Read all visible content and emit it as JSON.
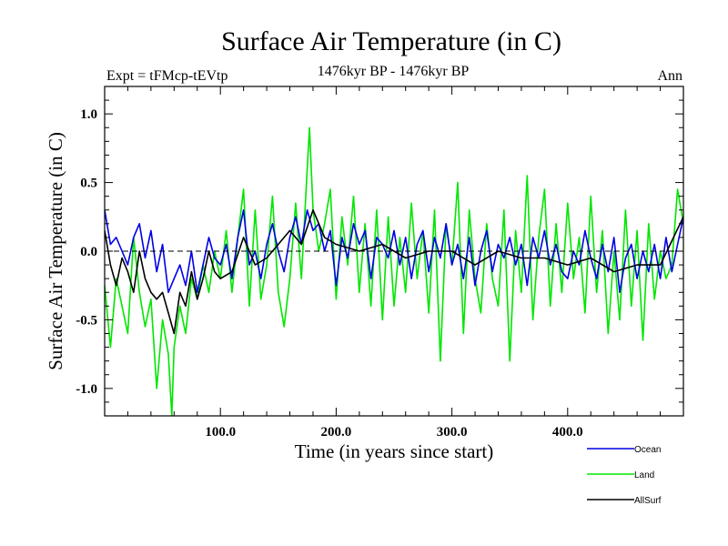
{
  "chart_data": {
    "type": "line",
    "title": "Surface Air Temperature (in C)",
    "subtitle_left": "Expt = tFMcp-tEVtp",
    "subtitle_center": "1476kyr BP - 1476kyr BP",
    "subtitle_right": "Ann",
    "xlabel": "Time (in years since start)",
    "ylabel": "Surface Air Temperature (in C)",
    "xlim": [
      0,
      500
    ],
    "ylim": [
      -1.2,
      1.2
    ],
    "xticks": [
      100,
      200,
      300,
      400
    ],
    "xtick_labels": [
      "100.0",
      "200.0",
      "300.0",
      "400.0"
    ],
    "yticks": [
      -1.0,
      -0.5,
      0.0,
      0.5,
      1.0
    ],
    "ytick_labels": [
      "-1.0",
      "-0.5",
      "0.0",
      "0.5",
      "1.0"
    ],
    "zero_line": "dashed",
    "legend_position": "bottom-right, below plot",
    "series": [
      {
        "name": "Land",
        "color": "#00e600",
        "x": [
          0,
          5,
          10,
          15,
          20,
          25,
          30,
          35,
          40,
          45,
          50,
          55,
          58,
          60,
          65,
          70,
          75,
          80,
          85,
          90,
          95,
          100,
          105,
          110,
          115,
          120,
          125,
          130,
          135,
          140,
          145,
          150,
          155,
          160,
          165,
          170,
          175,
          177,
          180,
          185,
          190,
          195,
          200,
          205,
          210,
          215,
          220,
          225,
          230,
          235,
          240,
          245,
          250,
          255,
          260,
          265,
          270,
          275,
          280,
          285,
          290,
          295,
          300,
          305,
          310,
          315,
          320,
          325,
          330,
          335,
          340,
          345,
          350,
          355,
          360,
          365,
          370,
          375,
          380,
          385,
          390,
          395,
          400,
          405,
          410,
          415,
          420,
          425,
          430,
          435,
          440,
          445,
          450,
          455,
          460,
          465,
          470,
          475,
          480,
          485,
          490,
          495,
          500
        ],
        "values": [
          -0.25,
          -0.7,
          -0.2,
          -0.4,
          -0.6,
          0.1,
          -0.3,
          -0.55,
          -0.35,
          -1.0,
          -0.5,
          -0.75,
          -1.2,
          -0.7,
          -0.4,
          -0.6,
          -0.2,
          -0.35,
          -0.1,
          -0.3,
          0.0,
          -0.2,
          0.15,
          -0.3,
          0.1,
          0.45,
          -0.4,
          0.3,
          -0.35,
          -0.1,
          0.4,
          -0.3,
          -0.55,
          -0.2,
          0.35,
          -0.2,
          0.6,
          0.9,
          0.3,
          0.0,
          0.2,
          0.45,
          -0.35,
          0.25,
          -0.1,
          0.4,
          -0.3,
          0.2,
          -0.4,
          0.3,
          -0.5,
          0.25,
          -0.4,
          0.1,
          -0.3,
          0.35,
          -0.2,
          0.15,
          -0.45,
          0.3,
          -0.8,
          0.2,
          -0.1,
          0.5,
          -0.6,
          0.3,
          -0.2,
          -0.45,
          0.2,
          -0.2,
          -0.4,
          0.3,
          -0.8,
          0.15,
          -0.3,
          0.55,
          -0.5,
          0.1,
          0.45,
          -0.4,
          0.2,
          -0.3,
          0.35,
          -0.2,
          0.1,
          -0.45,
          0.4,
          -0.3,
          0.15,
          -0.6,
          0.0,
          -0.5,
          0.3,
          -0.4,
          0.15,
          -0.65,
          0.2,
          -0.35,
          0.0,
          -0.2,
          -0.1,
          0.45,
          0.2
        ]
      },
      {
        "name": "Ocean",
        "color": "#0000e6",
        "x": [
          0,
          5,
          10,
          15,
          20,
          25,
          30,
          35,
          40,
          45,
          50,
          55,
          60,
          65,
          70,
          75,
          80,
          85,
          90,
          95,
          100,
          105,
          110,
          115,
          120,
          125,
          130,
          135,
          140,
          145,
          150,
          155,
          160,
          165,
          170,
          175,
          180,
          185,
          190,
          195,
          200,
          205,
          210,
          215,
          220,
          225,
          230,
          235,
          240,
          245,
          250,
          255,
          260,
          265,
          270,
          275,
          280,
          285,
          290,
          295,
          300,
          305,
          310,
          315,
          320,
          325,
          330,
          335,
          340,
          345,
          350,
          355,
          360,
          365,
          370,
          375,
          380,
          385,
          390,
          395,
          400,
          405,
          410,
          415,
          420,
          425,
          430,
          435,
          440,
          445,
          450,
          455,
          460,
          465,
          470,
          475,
          480,
          485,
          490,
          495,
          500
        ],
        "values": [
          0.3,
          0.05,
          0.1,
          0.0,
          -0.1,
          0.1,
          0.2,
          -0.05,
          0.15,
          -0.15,
          0.05,
          -0.3,
          -0.2,
          -0.1,
          -0.25,
          0.0,
          -0.3,
          -0.1,
          0.1,
          -0.05,
          -0.1,
          0.05,
          -0.2,
          0.1,
          0.3,
          -0.1,
          0.0,
          -0.2,
          0.05,
          0.2,
          0.0,
          -0.15,
          0.1,
          0.25,
          0.05,
          0.3,
          0.15,
          0.2,
          0.0,
          0.15,
          -0.25,
          0.1,
          -0.05,
          0.2,
          0.05,
          0.15,
          -0.2,
          0.1,
          0.05,
          -0.05,
          0.15,
          -0.1,
          0.1,
          -0.2,
          0.05,
          0.15,
          -0.15,
          0.1,
          -0.05,
          0.2,
          -0.1,
          0.05,
          -0.2,
          0.1,
          -0.25,
          0.0,
          0.15,
          -0.15,
          0.05,
          -0.05,
          0.1,
          -0.1,
          0.05,
          -0.25,
          0.1,
          -0.05,
          0.15,
          -0.1,
          0.05,
          -0.15,
          -0.2,
          0.0,
          -0.1,
          0.15,
          -0.05,
          -0.2,
          0.05,
          -0.15,
          0.1,
          -0.3,
          -0.05,
          0.05,
          -0.2,
          0.0,
          -0.15,
          0.05,
          -0.2,
          0.1,
          -0.15,
          0.05,
          0.25
        ]
      },
      {
        "name": "AllSurf",
        "color": "#000000",
        "x": [
          0,
          5,
          10,
          15,
          20,
          25,
          30,
          35,
          40,
          45,
          50,
          55,
          60,
          65,
          70,
          75,
          80,
          85,
          90,
          95,
          100,
          110,
          120,
          130,
          140,
          150,
          160,
          170,
          180,
          190,
          200,
          220,
          240,
          260,
          280,
          300,
          320,
          340,
          360,
          380,
          400,
          420,
          440,
          460,
          480,
          500
        ],
        "values": [
          0.15,
          -0.1,
          -0.25,
          -0.05,
          -0.15,
          -0.3,
          0.0,
          -0.2,
          -0.3,
          -0.35,
          -0.3,
          -0.45,
          -0.6,
          -0.3,
          -0.4,
          -0.15,
          -0.35,
          -0.2,
          0.0,
          -0.15,
          -0.2,
          -0.15,
          0.1,
          -0.1,
          -0.05,
          0.05,
          0.15,
          0.05,
          0.3,
          0.1,
          0.05,
          0.0,
          0.05,
          -0.05,
          0.0,
          0.0,
          -0.1,
          0.0,
          -0.05,
          -0.05,
          -0.1,
          -0.05,
          -0.15,
          -0.1,
          -0.1,
          0.25
        ]
      }
    ],
    "legend": [
      {
        "label": "Ocean",
        "color": "#0000e6"
      },
      {
        "label": "Land",
        "color": "#00e600"
      },
      {
        "label": "AllSurf",
        "color": "#000000"
      }
    ]
  }
}
